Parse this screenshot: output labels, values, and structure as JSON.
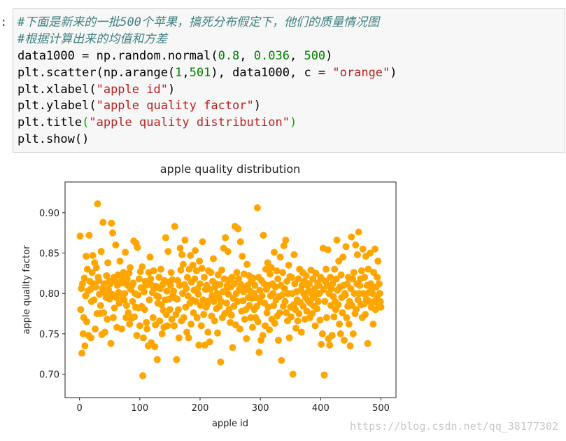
{
  "prompt": ":",
  "code": [
    [
      {
        "t": "#下面是新来的一批500个苹果，搞死分布假定下，他们的质量情况图",
        "c": "#408080",
        "i": true
      }
    ],
    [
      {
        "t": "#根据计算出来的均值和方差",
        "c": "#408080",
        "i": true
      }
    ],
    [
      {
        "t": "data1000 = np.random.normal(",
        "c": "#000000"
      },
      {
        "t": "0.8",
        "c": "#008000"
      },
      {
        "t": ", ",
        "c": "#000000"
      },
      {
        "t": "0.036",
        "c": "#008000"
      },
      {
        "t": ", ",
        "c": "#000000"
      },
      {
        "t": "500",
        "c": "#008000"
      },
      {
        "t": ")",
        "c": "#000000"
      }
    ],
    [
      {
        "t": "plt.scatter(np.arange(",
        "c": "#000000"
      },
      {
        "t": "1",
        "c": "#008000"
      },
      {
        "t": ",",
        "c": "#000000"
      },
      {
        "t": "501",
        "c": "#008000"
      },
      {
        "t": "), data1000, c = ",
        "c": "#000000"
      },
      {
        "t": "\"orange\"",
        "c": "#ba2121"
      },
      {
        "t": ")",
        "c": "#000000"
      }
    ],
    [
      {
        "t": "plt.xlabel(",
        "c": "#000000"
      },
      {
        "t": "\"apple id\"",
        "c": "#ba2121"
      },
      {
        "t": ")",
        "c": "#000000"
      }
    ],
    [
      {
        "t": "plt.ylabel(",
        "c": "#000000"
      },
      {
        "t": "\"apple quality factor\"",
        "c": "#ba2121"
      },
      {
        "t": ")",
        "c": "#000000"
      }
    ],
    [
      {
        "t": "plt.title",
        "c": "#000000"
      },
      {
        "t": "(",
        "c": "#00b000"
      },
      {
        "t": "\"apple quality distribution\"",
        "c": "#ba2121"
      },
      {
        "t": ")",
        "c": "#00b000"
      }
    ],
    [
      {
        "t": "plt.show()",
        "c": "#000000"
      }
    ]
  ],
  "watermark": "https://blog.csdn.net/qq_38177302",
  "chart_data": {
    "type": "scatter",
    "title": "apple quality distribution",
    "xlabel": "apple id",
    "ylabel": "apple quality factor",
    "color": "#ffa500",
    "xlim": [
      -23.95,
      524.95
    ],
    "ylim": [
      0.671,
      0.938
    ],
    "xticks": [
      0,
      100,
      200,
      300,
      400,
      500
    ],
    "yticks": [
      {
        "value": 0.7,
        "label": "0.70"
      },
      0.75,
      {
        "value": 0.8,
        "label": "0.80"
      },
      0.85,
      {
        "value": 0.9,
        "label": "0.90"
      }
    ],
    "x": [
      1,
      2,
      3,
      4,
      5,
      6,
      7,
      8,
      9,
      10,
      11,
      12,
      13,
      14,
      15,
      16,
      17,
      18,
      19,
      20,
      21,
      22,
      23,
      24,
      25,
      26,
      27,
      28,
      29,
      30,
      31,
      32,
      33,
      34,
      35,
      36,
      37,
      38,
      39,
      40,
      41,
      42,
      43,
      44,
      45,
      46,
      47,
      48,
      49,
      50,
      51,
      52,
      53,
      54,
      55,
      56,
      57,
      58,
      59,
      60,
      61,
      62,
      63,
      64,
      65,
      66,
      67,
      68,
      69,
      70,
      71,
      72,
      73,
      74,
      75,
      76,
      77,
      78,
      79,
      80,
      81,
      82,
      83,
      84,
      85,
      86,
      87,
      88,
      89,
      90,
      91,
      92,
      93,
      94,
      95,
      96,
      97,
      98,
      99,
      100,
      101,
      102,
      103,
      104,
      105,
      106,
      107,
      108,
      109,
      110,
      111,
      112,
      113,
      114,
      115,
      116,
      117,
      118,
      119,
      120,
      121,
      122,
      123,
      124,
      125,
      126,
      127,
      128,
      129,
      130,
      131,
      132,
      133,
      134,
      135,
      136,
      137,
      138,
      139,
      140,
      141,
      142,
      143,
      144,
      145,
      146,
      147,
      148,
      149,
      150,
      151,
      152,
      153,
      154,
      155,
      156,
      157,
      158,
      159,
      160,
      161,
      162,
      163,
      164,
      165,
      166,
      167,
      168,
      169,
      170,
      171,
      172,
      173,
      174,
      175,
      176,
      177,
      178,
      179,
      180,
      181,
      182,
      183,
      184,
      185,
      186,
      187,
      188,
      189,
      190,
      191,
      192,
      193,
      194,
      195,
      196,
      197,
      198,
      199,
      200,
      201,
      202,
      203,
      204,
      205,
      206,
      207,
      208,
      209,
      210,
      211,
      212,
      213,
      214,
      215,
      216,
      217,
      218,
      219,
      220,
      221,
      222,
      223,
      224,
      225,
      226,
      227,
      228,
      229,
      230,
      231,
      232,
      233,
      234,
      235,
      236,
      237,
      238,
      239,
      240,
      241,
      242,
      243,
      244,
      245,
      246,
      247,
      248,
      249,
      250,
      251,
      252,
      253,
      254,
      255,
      256,
      257,
      258,
      259,
      260,
      261,
      262,
      263,
      264,
      265,
      266,
      267,
      268,
      269,
      270,
      271,
      272,
      273,
      274,
      275,
      276,
      277,
      278,
      279,
      280,
      281,
      282,
      283,
      284,
      285,
      286,
      287,
      288,
      289,
      290,
      291,
      292,
      293,
      294,
      295,
      296,
      297,
      298,
      299,
      300,
      301,
      302,
      303,
      304,
      305,
      306,
      307,
      308,
      309,
      310,
      311,
      312,
      313,
      314,
      315,
      316,
      317,
      318,
      319,
      320,
      321,
      322,
      323,
      324,
      325,
      326,
      327,
      328,
      329,
      330,
      331,
      332,
      333,
      334,
      335,
      336,
      337,
      338,
      339,
      340,
      341,
      342,
      343,
      344,
      345,
      346,
      347,
      348,
      349,
      350,
      351,
      352,
      353,
      354,
      355,
      356,
      357,
      358,
      359,
      360,
      361,
      362,
      363,
      364,
      365,
      366,
      367,
      368,
      369,
      370,
      371,
      372,
      373,
      374,
      375,
      376,
      377,
      378,
      379,
      380,
      381,
      382,
      383,
      384,
      385,
      386,
      387,
      388,
      389,
      390,
      391,
      392,
      393,
      394,
      395,
      396,
      397,
      398,
      399,
      400,
      401,
      402,
      403,
      404,
      405,
      406,
      407,
      408,
      409,
      410,
      411,
      412,
      413,
      414,
      415,
      416,
      417,
      418,
      419,
      420,
      421,
      422,
      423,
      424,
      425,
      426,
      427,
      428,
      429,
      430,
      431,
      432,
      433,
      434,
      435,
      436,
      437,
      438,
      439,
      440,
      441,
      442,
      443,
      444,
      445,
      446,
      447,
      448,
      449,
      450,
      451,
      452,
      453,
      454,
      455,
      456,
      457,
      458,
      459,
      460,
      461,
      462,
      463,
      464,
      465,
      466,
      467,
      468,
      469,
      470,
      471,
      472,
      473,
      474,
      475,
      476,
      477,
      478,
      479,
      480,
      481,
      482,
      483,
      484,
      485,
      486,
      487,
      488,
      489,
      490,
      491,
      492,
      493,
      494,
      495,
      496,
      497,
      498,
      499,
      500
    ],
    "values": [
      0.871,
      0.78,
      0.806,
      0.726,
      0.812,
      0.75,
      0.77,
      0.819,
      0.735,
      0.797,
      0.846,
      0.765,
      0.83,
      0.803,
      0.748,
      0.872,
      0.815,
      0.805,
      0.745,
      0.79,
      0.826,
      0.847,
      0.812,
      0.792,
      0.838,
      0.756,
      0.808,
      0.832,
      0.775,
      0.911,
      0.82,
      0.816,
      0.799,
      0.775,
      0.785,
      0.852,
      0.749,
      0.806,
      0.888,
      0.776,
      0.812,
      0.752,
      0.8,
      0.795,
      0.822,
      0.768,
      0.838,
      0.805,
      0.815,
      0.793,
      0.812,
      0.738,
      0.887,
      0.799,
      0.875,
      0.77,
      0.82,
      0.782,
      0.815,
      0.86,
      0.795,
      0.758,
      0.81,
      0.823,
      0.801,
      0.788,
      0.84,
      0.797,
      0.816,
      0.756,
      0.821,
      0.813,
      0.826,
      0.792,
      0.8,
      0.851,
      0.77,
      0.785,
      0.818,
      0.81,
      0.776,
      0.825,
      0.762,
      0.832,
      0.805,
      0.769,
      0.81,
      0.79,
      0.813,
      0.865,
      0.771,
      0.8,
      0.783,
      0.862,
      0.748,
      0.857,
      0.798,
      0.782,
      0.818,
      0.76,
      0.827,
      0.807,
      0.784,
      0.833,
      0.698,
      0.745,
      0.802,
      0.78,
      0.815,
      0.81,
      0.764,
      0.756,
      0.812,
      0.735,
      0.826,
      0.792,
      0.845,
      0.818,
      0.739,
      0.81,
      0.801,
      0.77,
      0.828,
      0.806,
      0.734,
      0.761,
      0.809,
      0.797,
      0.718,
      0.788,
      0.796,
      0.82,
      0.766,
      0.806,
      0.83,
      0.786,
      0.75,
      0.811,
      0.779,
      0.758,
      0.816,
      0.792,
      0.869,
      0.774,
      0.803,
      0.76,
      0.852,
      0.814,
      0.793,
      0.78,
      0.81,
      0.826,
      0.768,
      0.817,
      0.798,
      0.803,
      0.76,
      0.883,
      0.794,
      0.774,
      0.718,
      0.793,
      0.816,
      0.78,
      0.745,
      0.81,
      0.856,
      0.829,
      0.766,
      0.848,
      0.8,
      0.836,
      0.77,
      0.811,
      0.866,
      0.783,
      0.806,
      0.752,
      0.82,
      0.797,
      0.745,
      0.83,
      0.788,
      0.847,
      0.762,
      0.814,
      0.792,
      0.835,
      0.776,
      0.804,
      0.818,
      0.853,
      0.79,
      0.828,
      0.77,
      0.806,
      0.799,
      0.736,
      0.84,
      0.812,
      0.785,
      0.76,
      0.831,
      0.864,
      0.792,
      0.774,
      0.82,
      0.736,
      0.805,
      0.783,
      0.81,
      0.787,
      0.752,
      0.828,
      0.791,
      0.74,
      0.805,
      0.826,
      0.772,
      0.797,
      0.815,
      0.843,
      0.79,
      0.766,
      0.808,
      0.812,
      0.781,
      0.8,
      0.751,
      0.823,
      0.795,
      0.784,
      0.811,
      0.715,
      0.79,
      0.829,
      0.77,
      0.802,
      0.856,
      0.818,
      0.775,
      0.869,
      0.804,
      0.788,
      0.81,
      0.852,
      0.799,
      0.78,
      0.817,
      0.764,
      0.808,
      0.773,
      0.82,
      0.733,
      0.794,
      0.784,
      0.812,
      0.883,
      0.761,
      0.8,
      0.826,
      0.79,
      0.88,
      0.818,
      0.805,
      0.756,
      0.864,
      0.811,
      0.778,
      0.846,
      0.791,
      0.802,
      0.824,
      0.768,
      0.806,
      0.78,
      0.744,
      0.836,
      0.81,
      0.795,
      0.822,
      0.785,
      0.803,
      0.77,
      0.815,
      0.794,
      0.758,
      0.819,
      0.8,
      0.78,
      0.81,
      0.77,
      0.795,
      0.784,
      0.906,
      0.765,
      0.82,
      0.727,
      0.804,
      0.79,
      0.742,
      0.816,
      0.797,
      0.748,
      0.872,
      0.812,
      0.788,
      0.76,
      0.83,
      0.805,
      0.776,
      0.838,
      0.783,
      0.81,
      0.755,
      0.824,
      0.797,
      0.832,
      0.768,
      0.812,
      0.8,
      0.785,
      0.851,
      0.763,
      0.808,
      0.792,
      0.828,
      0.772,
      0.818,
      0.742,
      0.796,
      0.776,
      0.845,
      0.81,
      0.717,
      0.798,
      0.826,
      0.784,
      0.859,
      0.806,
      0.79,
      0.866,
      0.776,
      0.815,
      0.766,
      0.8,
      0.835,
      0.745,
      0.821,
      0.783,
      0.771,
      0.82,
      0.8,
      0.7,
      0.786,
      0.848,
      0.812,
      0.78,
      0.757,
      0.802,
      0.792,
      0.766,
      0.818,
      0.775,
      0.83,
      0.789,
      0.804,
      0.752,
      0.81,
      0.826,
      0.784,
      0.8,
      0.815,
      0.768,
      0.795,
      0.822,
      0.778,
      0.81,
      0.791,
      0.803,
      0.812,
      0.77,
      0.788,
      0.829,
      0.8,
      0.775,
      0.818,
      0.795,
      0.784,
      0.806,
      0.76,
      0.825,
      0.799,
      0.781,
      0.813,
      0.79,
      0.81,
      0.8,
      0.767,
      0.82,
      0.737,
      0.818,
      0.75,
      0.856,
      0.805,
      0.699,
      0.79,
      0.815,
      0.83,
      0.77,
      0.81,
      0.854,
      0.744,
      0.8,
      0.736,
      0.82,
      0.785,
      0.806,
      0.748,
      0.812,
      0.796,
      0.771,
      0.83,
      0.79,
      0.78,
      0.818,
      0.866,
      0.804,
      0.786,
      0.84,
      0.762,
      0.808,
      0.75,
      0.823,
      0.795,
      0.776,
      0.845,
      0.81,
      0.742,
      0.8,
      0.798,
      0.858,
      0.77,
      0.812,
      0.784,
      0.82,
      0.762,
      0.79,
      0.735,
      0.806,
      0.87,
      0.785,
      0.818,
      0.75,
      0.826,
      0.8,
      0.775,
      0.86,
      0.78,
      0.812,
      0.848,
      0.792,
      0.876,
      0.8,
      0.81,
      0.818,
      0.786,
      0.828,
      0.77,
      0.855,
      0.8,
      0.787,
      0.82,
      0.774,
      0.846,
      0.793,
      0.81,
      0.738,
      0.83,
      0.801,
      0.79,
      0.85,
      0.812,
      0.783,
      0.806,
      0.8,
      0.762,
      0.826,
      0.79,
      0.855,
      0.78,
      0.808,
      0.795,
      0.82,
      0.84,
      0.786,
      0.812,
      0.8,
      0.79,
      0.783
    ]
  }
}
